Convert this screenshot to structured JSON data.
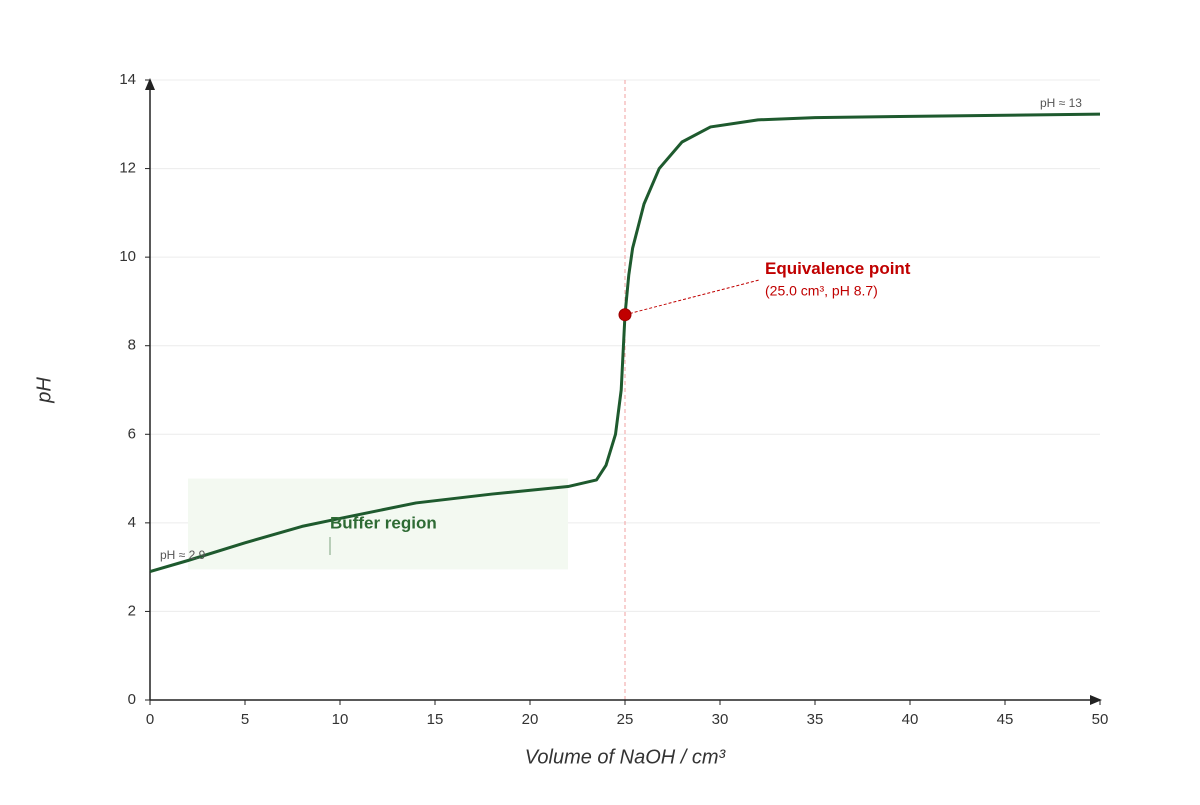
{
  "chart_data": {
    "type": "line",
    "x_label": "Volume of NaOH / cm³",
    "y_label": "pH",
    "x": [
      0,
      2,
      5,
      8,
      10,
      14,
      18,
      22,
      23.5,
      24,
      24.5,
      24.8,
      25,
      25.2,
      25.4,
      26,
      26.8,
      28,
      29.5,
      32,
      35,
      40,
      50
    ],
    "series": [
      {
        "name": "pH",
        "color": "#1e5a2e",
        "values": [
          2.9,
          3.15,
          3.55,
          3.92,
          4.1,
          4.45,
          4.65,
          4.82,
          4.97,
          5.3,
          6.0,
          7.0,
          8.7,
          9.6,
          10.2,
          11.2,
          12.0,
          12.6,
          12.94,
          13.1,
          13.15,
          13.18,
          13.23
        ]
      }
    ],
    "xlim": [
      0,
      50
    ],
    "ylim": [
      0,
      14
    ],
    "xticks": [
      0,
      5,
      10,
      15,
      20,
      25,
      30,
      35,
      40,
      45,
      50
    ],
    "yticks": [
      0,
      2,
      4,
      6,
      8,
      10,
      12,
      14
    ],
    "grid": true,
    "equivalence_point": {
      "x": 25,
      "y": 8.7,
      "label": "Equivalence point",
      "detail": "(25.0 cm³, pH 8.7)",
      "color": "#c00000"
    },
    "buffer_region": {
      "label": "Buffer region",
      "x": [
        2,
        22
      ],
      "y": [
        2.95,
        5
      ],
      "color": "#2e6b34"
    },
    "start_label": "pH ≈ 2.9",
    "end_label": "pH ≈ 13"
  }
}
